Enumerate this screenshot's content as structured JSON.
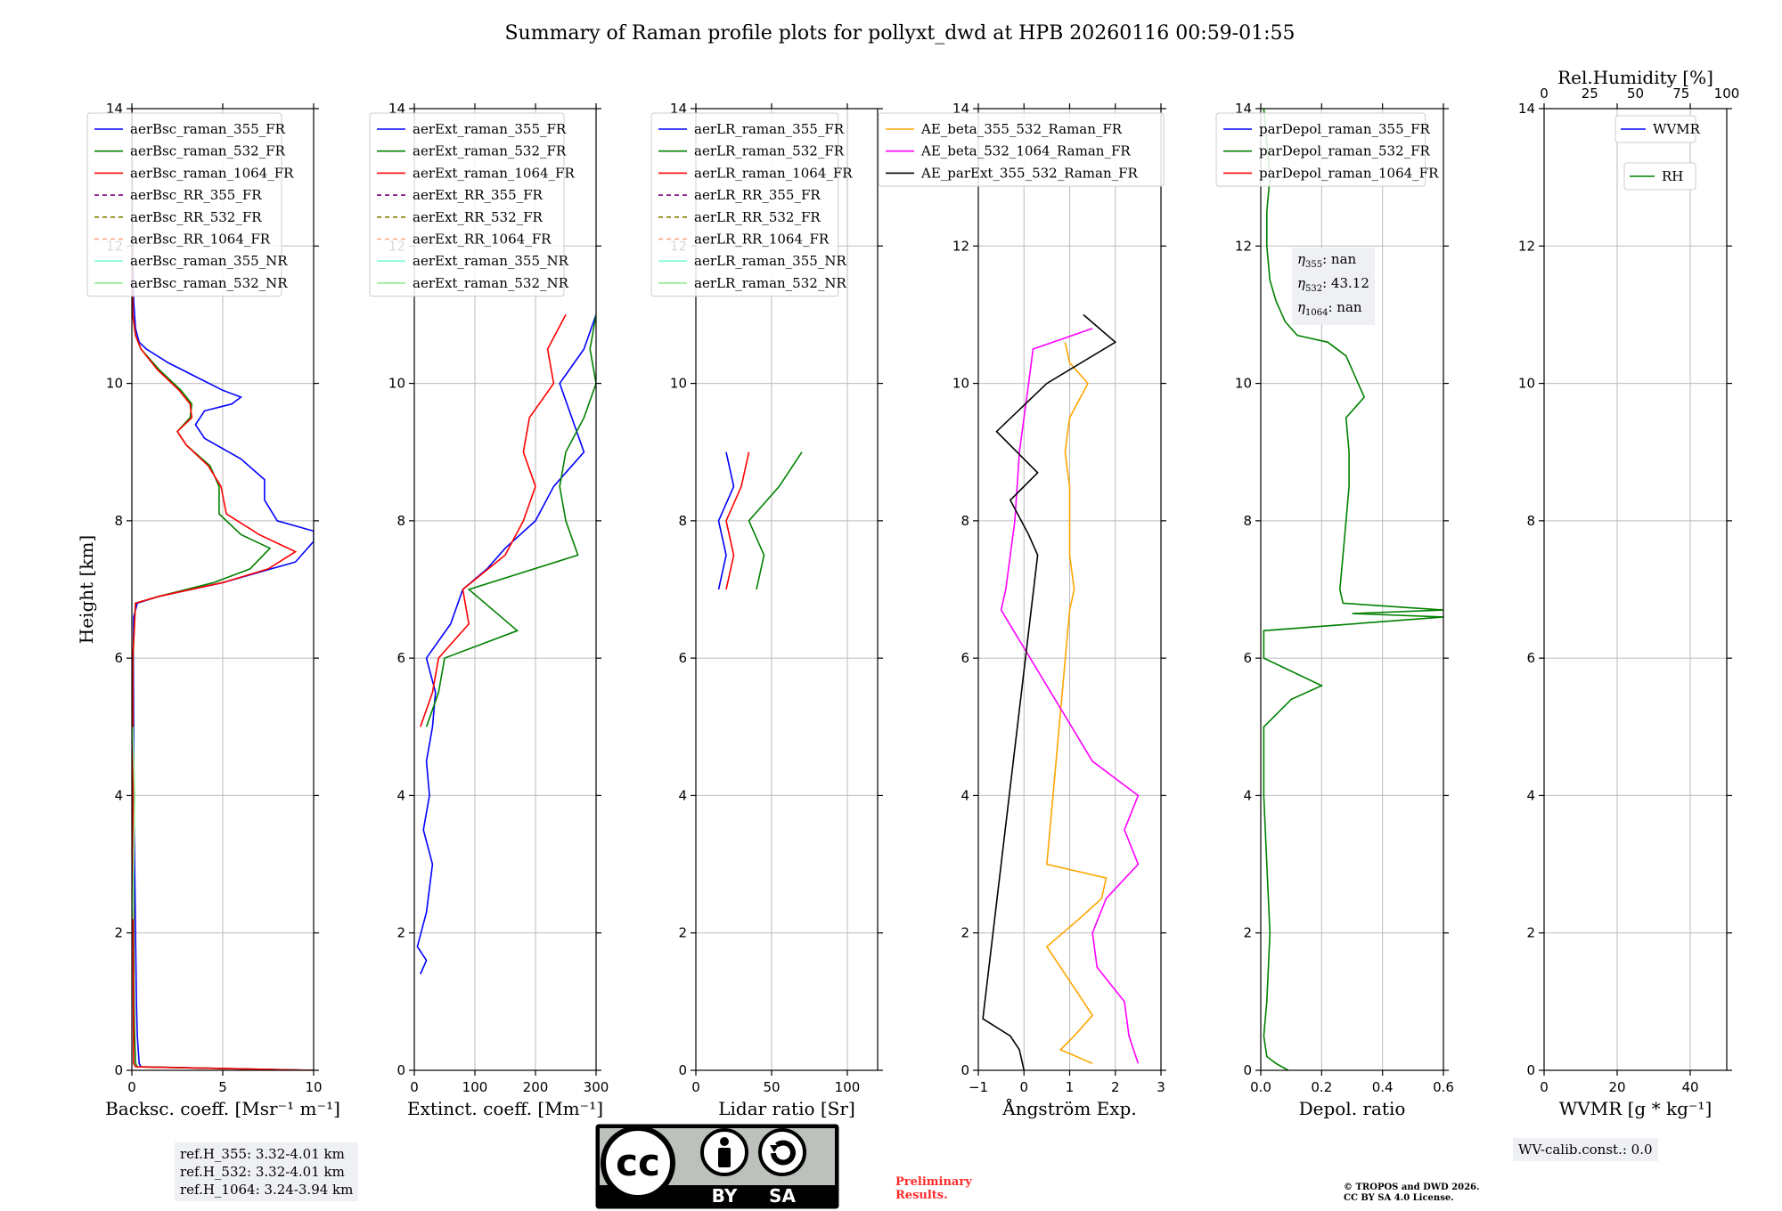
{
  "title": "Summary of Raman profile plots for pollyxt_dwd at HPB 20260116 00:59-01:55",
  "colors": {
    "c355": "#0000ff",
    "c532": "#008000",
    "c1064": "#ff0000",
    "rr355": "#800080",
    "rr532": "#808000",
    "rr1064": "#ffa07a",
    "nr355": "#7fffd4",
    "nr532": "#90ee90",
    "ae1": "#ffa500",
    "ae2": "#ff00ff",
    "ae3": "#000000"
  },
  "ref_heights": [
    "ref.H_355: 3.32-4.01 km",
    "ref.H_532: 3.32-4.01 km",
    "ref.H_1064: 3.24-3.94 km"
  ],
  "eta": {
    "e355": "nan",
    "e532": "43.12",
    "e1064": "nan"
  },
  "wv_calib": "WV-calib.const.: 0.0",
  "preliminary": [
    "Preliminary",
    "Results."
  ],
  "copyright": [
    "© TROPOS and DWD 2026.",
    "CC BY SA 4.0 License."
  ],
  "license_badge": {
    "cc": "cc",
    "by": "BY",
    "sa": "SA"
  },
  "chart_data": [
    {
      "type": "line",
      "id": "bsc",
      "xlabel": "Backsc. coeff. [Msr⁻¹ m⁻¹]",
      "ylabel": "Height [km]",
      "xlim": [
        0,
        10
      ],
      "ylim": [
        0,
        14
      ],
      "xticks": [
        0,
        5,
        10
      ],
      "yticks": [
        0,
        2,
        4,
        6,
        8,
        10,
        12,
        14
      ],
      "legend": [
        "aerBsc_raman_355_FR",
        "aerBsc_raman_532_FR",
        "aerBsc_raman_1064_FR",
        "aerBsc_RR_355_FR",
        "aerBsc_RR_532_FR",
        "aerBsc_RR_1064_FR",
        "aerBsc_raman_355_NR",
        "aerBsc_raman_532_NR"
      ],
      "series": [
        {
          "name": "aerBsc_raman_355_FR",
          "h": [
            0,
            0.05,
            0.1,
            0.5,
            1,
            2,
            3,
            4,
            5,
            6,
            6.6,
            6.8,
            6.9,
            7.1,
            7.4,
            7.7,
            7.85,
            8,
            8.3,
            8.6,
            8.9,
            9.2,
            9.4,
            9.6,
            9.7,
            9.8,
            9.9,
            10.1,
            10.3,
            10.5,
            10.6,
            10.8,
            11.2,
            12,
            14
          ],
          "x": [
            10,
            0.5,
            0.4,
            0.3,
            0.25,
            0.2,
            0.15,
            0.12,
            0.1,
            0.08,
            0.1,
            0.3,
            1.5,
            5,
            9,
            10,
            10,
            8,
            7.3,
            7.3,
            6,
            4,
            3.5,
            4,
            5.5,
            6,
            5,
            3.5,
            2,
            0.8,
            0.4,
            0.2,
            0.1,
            0.05,
            0.0
          ]
        },
        {
          "name": "aerBsc_raman_532_FR",
          "h": [
            0,
            0.05,
            0.1,
            0.5,
            1,
            2,
            4,
            6,
            6.8,
            6.9,
            7.1,
            7.3,
            7.6,
            7.8,
            8.1,
            8.5,
            8.8,
            9.1,
            9.3,
            9.5,
            9.7,
            9.9,
            10.2,
            10.5,
            10.7,
            11,
            12,
            14
          ],
          "x": [
            10,
            0.3,
            0.2,
            0.15,
            0.12,
            0.1,
            0.08,
            0.06,
            0.2,
            1.5,
            4.5,
            6.5,
            7.6,
            6,
            4.8,
            4.8,
            4.3,
            3,
            2.5,
            3.2,
            3.3,
            2.7,
            1.5,
            0.5,
            0.2,
            0.05,
            0.02,
            0
          ]
        },
        {
          "name": "aerBsc_raman_1064_FR",
          "h": [
            0,
            0.05,
            0.1,
            1,
            3,
            6,
            6.8,
            6.9,
            7.1,
            7.3,
            7.55,
            7.8,
            8.1,
            8.5,
            8.8,
            9.1,
            9.3,
            9.5,
            9.7,
            9.9,
            10.2,
            10.5,
            10.7,
            11,
            12,
            14
          ],
          "x": [
            10,
            0.2,
            0.1,
            0.08,
            0.06,
            0.05,
            0.2,
            1.5,
            5,
            7.5,
            9,
            7,
            5.2,
            4.9,
            4.2,
            3,
            2.5,
            3.3,
            3.2,
            2.6,
            1.4,
            0.5,
            0.2,
            0.05,
            0.02,
            0
          ]
        },
        {
          "name": "aerBsc_raman_532_NR",
          "h": [
            2.2,
            3,
            4,
            5
          ],
          "x": [
            0.05,
            0.1,
            0.15,
            0.05
          ]
        }
      ]
    },
    {
      "type": "line",
      "id": "ext",
      "xlabel": "Extinct. coeff. [Mm⁻¹]",
      "xlim": [
        0,
        300
      ],
      "ylim": [
        0,
        14
      ],
      "xticks": [
        0,
        100,
        200,
        300
      ],
      "yticks": [
        0,
        2,
        4,
        6,
        8,
        10,
        12,
        14
      ],
      "legend": [
        "aerExt_raman_355_FR",
        "aerExt_raman_532_FR",
        "aerExt_raman_1064_FR",
        "aerExt_RR_355_FR",
        "aerExt_RR_532_FR",
        "aerExt_RR_1064_FR",
        "aerExt_raman_355_NR",
        "aerExt_raman_532_NR"
      ],
      "series": [
        {
          "name": "aerExt_raman_355_FR",
          "h": [
            1.4,
            1.6,
            1.8,
            2.3,
            3,
            3.5,
            4,
            4.5,
            5,
            5.5,
            6,
            6.5,
            7,
            7.3,
            7.6,
            8,
            8.5,
            9,
            9.5,
            10,
            10.5,
            11
          ],
          "x": [
            10,
            20,
            5,
            20,
            30,
            15,
            25,
            20,
            30,
            35,
            20,
            60,
            80,
            120,
            150,
            200,
            230,
            280,
            260,
            240,
            280,
            300
          ]
        },
        {
          "name": "aerExt_raman_532_FR",
          "h": [
            5,
            5.5,
            6,
            6.4,
            7,
            7.5,
            8,
            8.5,
            9,
            9.5,
            10,
            10.5,
            11
          ],
          "x": [
            20,
            40,
            50,
            170,
            90,
            270,
            250,
            240,
            250,
            280,
            300,
            290,
            300
          ]
        },
        {
          "name": "aerExt_raman_1064_FR",
          "h": [
            5,
            5.5,
            6,
            6.5,
            7,
            7.5,
            8,
            8.5,
            9,
            9.5,
            10,
            10.5,
            11
          ],
          "x": [
            10,
            30,
            40,
            90,
            80,
            150,
            180,
            200,
            180,
            190,
            230,
            220,
            250
          ]
        }
      ]
    },
    {
      "type": "line",
      "id": "lr",
      "xlabel": "Lidar ratio [Sr]",
      "xlim": [
        0,
        120
      ],
      "ylim": [
        0,
        14
      ],
      "xticks": [
        0,
        50,
        100
      ],
      "yticks": [
        0,
        2,
        4,
        6,
        8,
        10,
        12,
        14
      ],
      "legend": [
        "aerLR_raman_355_FR",
        "aerLR_raman_532_FR",
        "aerLR_raman_1064_FR",
        "aerLR_RR_355_FR",
        "aerLR_RR_532_FR",
        "aerLR_RR_1064_FR",
        "aerLR_raman_355_NR",
        "aerLR_raman_532_NR"
      ],
      "series": [
        {
          "name": "aerLR_raman_355_FR",
          "h": [
            7,
            7.5,
            8,
            8.5,
            9
          ],
          "x": [
            15,
            20,
            15,
            25,
            20
          ]
        },
        {
          "name": "aerLR_raman_532_FR",
          "h": [
            7,
            7.5,
            8,
            8.5,
            9
          ],
          "x": [
            40,
            45,
            35,
            55,
            70
          ]
        },
        {
          "name": "aerLR_raman_1064_FR",
          "h": [
            7,
            7.5,
            8,
            8.5,
            9
          ],
          "x": [
            20,
            25,
            20,
            30,
            35
          ]
        }
      ]
    },
    {
      "type": "line",
      "id": "ae",
      "xlabel": "Ångström Exp.",
      "xlim": [
        -1,
        3
      ],
      "ylim": [
        0,
        14
      ],
      "xticks": [
        -1,
        0,
        1,
        2,
        3
      ],
      "yticks": [
        0,
        2,
        4,
        6,
        8,
        10,
        12,
        14
      ],
      "legend": [
        "AE_beta_355_532_Raman_FR",
        "AE_beta_532_1064_Raman_FR",
        "AE_parExt_355_532_Raman_FR"
      ],
      "series": [
        {
          "name": "AE_beta_355_532_Raman_FR",
          "h": [
            0.1,
            0.3,
            0.5,
            0.8,
            1.1,
            1.5,
            1.8,
            2.2,
            2.5,
            2.8,
            3,
            6.7,
            7,
            7.5,
            8,
            8.5,
            9,
            9.5,
            10,
            10.3,
            10.6
          ],
          "x": [
            1.5,
            0.8,
            1.1,
            1.5,
            1.2,
            0.8,
            0.5,
            1.2,
            1.7,
            1.8,
            0.5,
            1.0,
            1.1,
            1.0,
            1.0,
            1.0,
            0.9,
            1.0,
            1.4,
            1.0,
            0.9
          ]
        },
        {
          "name": "AE_beta_532_1064_Raman_FR",
          "h": [
            0.1,
            0.5,
            1,
            1.5,
            2,
            2.5,
            3,
            3.5,
            4,
            4.5,
            6.7,
            7,
            8,
            9,
            10,
            10.5,
            10.8
          ],
          "x": [
            2.5,
            2.3,
            2.2,
            1.6,
            1.5,
            1.8,
            2.5,
            2.2,
            2.5,
            1.5,
            -0.5,
            -0.4,
            -0.2,
            -0.1,
            0.1,
            0.2,
            1.5
          ]
        },
        {
          "name": "AE_parExt_355_532_Raman_FR",
          "h": [
            0,
            0.3,
            0.5,
            0.75,
            7.5,
            7.8,
            8.3,
            8.7,
            9.3,
            10,
            10.6,
            11
          ],
          "x": [
            0,
            -0.1,
            -0.3,
            -0.9,
            0.3,
            0.1,
            -0.3,
            0.3,
            -0.6,
            0.5,
            2,
            1.3
          ]
        }
      ]
    },
    {
      "type": "line",
      "id": "depol",
      "xlabel": "Depol. ratio",
      "xlim": [
        0,
        0.6
      ],
      "ylim": [
        0,
        14
      ],
      "xticks": [
        0,
        0.2,
        0.4,
        0.6
      ],
      "xticklabels": [
        "0.0",
        "0.2",
        "0.4",
        "0.6"
      ],
      "yticks": [
        0,
        2,
        4,
        6,
        8,
        10,
        12,
        14
      ],
      "legend": [
        "parDepol_raman_355_FR",
        "parDepol_raman_532_FR",
        "parDepol_raman_1064_FR"
      ],
      "series": [
        {
          "name": "parDepol_raman_532_FR",
          "h": [
            0,
            0.1,
            0.2,
            0.5,
            1,
            2,
            3,
            4,
            5,
            5.4,
            5.6,
            6,
            6.4,
            6.6,
            6.65,
            6.7,
            6.8,
            7,
            7.5,
            8,
            8.5,
            9,
            9.5,
            9.8,
            10,
            10.2,
            10.4,
            10.6,
            10.7,
            10.9,
            11.2,
            11.5,
            12,
            12.5,
            13,
            13.5,
            14
          ],
          "x": [
            0.09,
            0.05,
            0.02,
            0.01,
            0.02,
            0.03,
            0.02,
            0.01,
            0.01,
            0.1,
            0.2,
            0.01,
            0.01,
            0.6,
            0.3,
            0.6,
            0.27,
            0.26,
            0.27,
            0.28,
            0.29,
            0.29,
            0.28,
            0.34,
            0.32,
            0.3,
            0.28,
            0.22,
            0.12,
            0.08,
            0.05,
            0.03,
            0.02,
            0.02,
            0.03,
            0.02,
            0.01
          ]
        }
      ]
    },
    {
      "type": "line",
      "id": "wv",
      "xlabel": "WVMR [g * kg⁻¹]",
      "xlim": [
        0,
        50
      ],
      "ylim": [
        0,
        14
      ],
      "xticks": [
        0,
        20,
        40
      ],
      "yticks": [
        0,
        2,
        4,
        6,
        8,
        10,
        12,
        14
      ],
      "top_xlabel": "Rel.Humidity [%]",
      "top_xlim": [
        0,
        100
      ],
      "top_xticks": [
        0,
        25,
        50,
        75,
        100
      ],
      "legend": [
        "WVMR",
        "RH"
      ],
      "series": []
    }
  ]
}
